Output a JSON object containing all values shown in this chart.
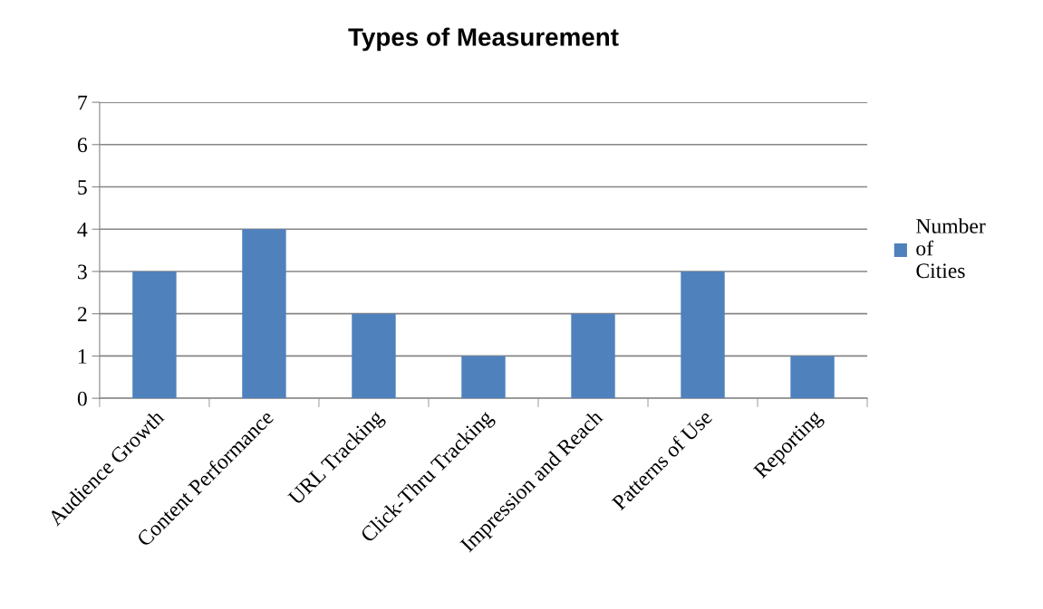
{
  "chart_data": {
    "type": "bar",
    "title": "Types of Measurement",
    "categories": [
      "Audience Growth",
      "Content Performance",
      "URL Tracking",
      "Click-Thru Tracking",
      "Impression and Reach",
      "Patterns of Use",
      "Reporting"
    ],
    "series": [
      {
        "name": "Number of Cities",
        "color": "#4f81bd",
        "values": [
          3,
          4,
          2,
          1,
          2,
          3,
          1
        ]
      }
    ],
    "ylim": [
      0,
      7
    ],
    "yticks": [
      0,
      1,
      2,
      3,
      4,
      5,
      6,
      7
    ],
    "grid": "y",
    "legend": "right"
  }
}
